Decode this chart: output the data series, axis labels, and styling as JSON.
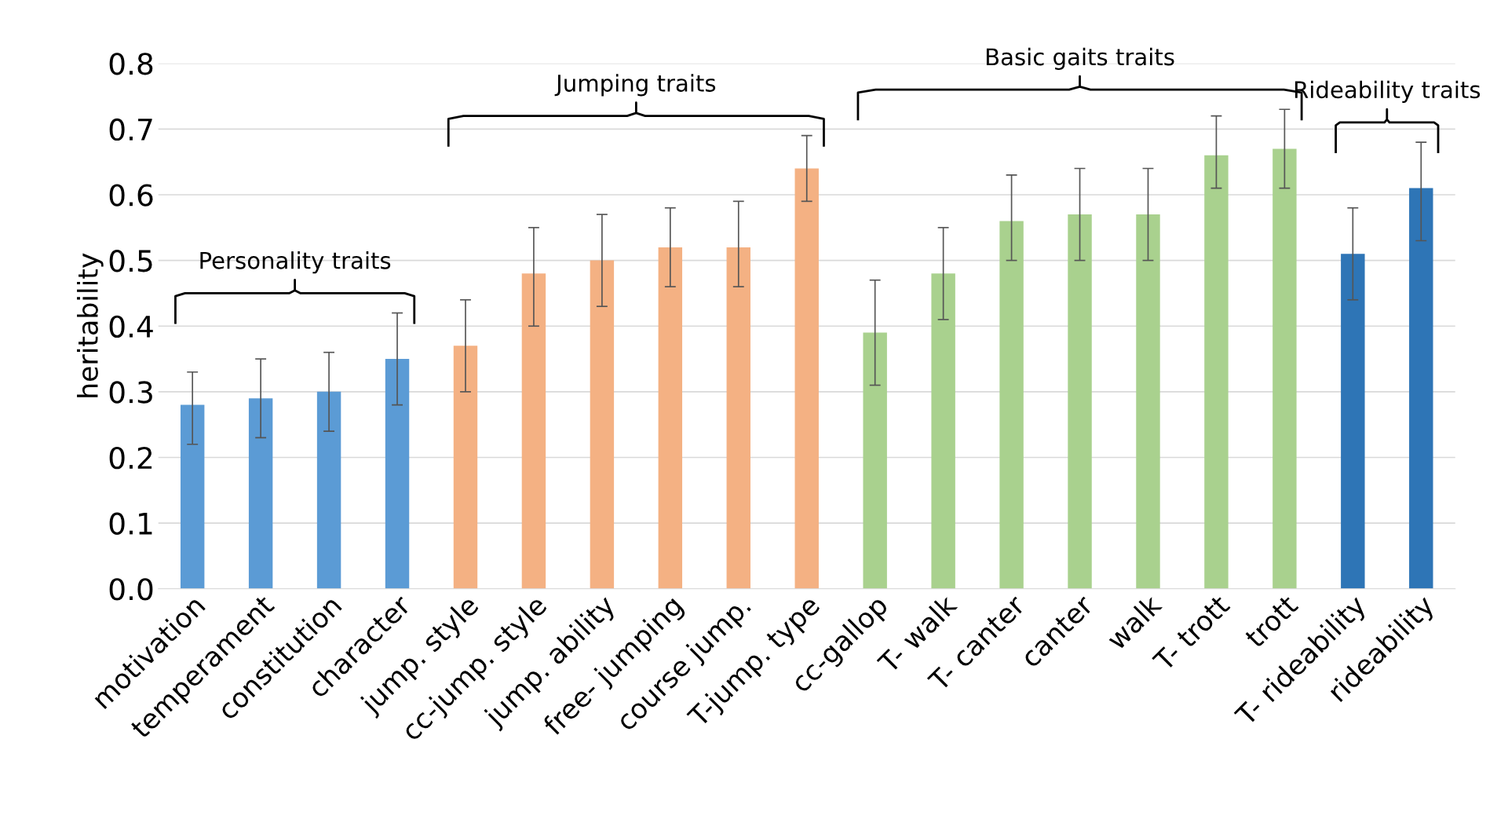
{
  "chart_data": {
    "type": "bar",
    "ylabel": "heritability",
    "categories": [
      "motivation",
      "temperament",
      "constitution",
      "character",
      "jump. style",
      "cc-jump. style",
      "jump. ability",
      "free- jumping",
      "course jump.",
      "T-jump. type",
      "cc-gallop",
      "T- walk",
      "T- canter",
      "canter",
      "walk",
      "T- trott",
      "trott",
      "T- rideability",
      "rideability"
    ],
    "values": [
      0.28,
      0.29,
      0.3,
      0.35,
      0.37,
      0.48,
      0.5,
      0.52,
      0.52,
      0.64,
      0.39,
      0.48,
      0.56,
      0.57,
      0.57,
      0.66,
      0.67,
      0.51,
      0.61
    ],
    "errors": [
      [
        0.22,
        0.33
      ],
      [
        0.23,
        0.35
      ],
      [
        0.24,
        0.36
      ],
      [
        0.28,
        0.42
      ],
      [
        0.3,
        0.44
      ],
      [
        0.4,
        0.55
      ],
      [
        0.43,
        0.57
      ],
      [
        0.46,
        0.58
      ],
      [
        0.46,
        0.59
      ],
      [
        0.59,
        0.69
      ],
      [
        0.31,
        0.47
      ],
      [
        0.41,
        0.55
      ],
      [
        0.5,
        0.63
      ],
      [
        0.5,
        0.64
      ],
      [
        0.5,
        0.64
      ],
      [
        0.61,
        0.72
      ],
      [
        0.61,
        0.73
      ],
      [
        0.44,
        0.58
      ],
      [
        0.53,
        0.68
      ]
    ],
    "colors": [
      "#5b9bd5",
      "#5b9bd5",
      "#5b9bd5",
      "#5b9bd5",
      "#f4b183",
      "#f4b183",
      "#f4b183",
      "#f4b183",
      "#f4b183",
      "#f4b183",
      "#a9d18e",
      "#a9d18e",
      "#a9d18e",
      "#a9d18e",
      "#a9d18e",
      "#a9d18e",
      "#a9d18e",
      "#2e75b6",
      "#2e75b6"
    ],
    "ylim": [
      0,
      0.8
    ],
    "yticks": [
      {
        "value": 0,
        "label": "0.0"
      },
      0.1,
      0.2,
      0.3,
      0.4,
      0.5,
      0.6,
      0.7,
      0.8
    ],
    "grid": "y",
    "annotations": [
      "Personality traits",
      "Jumping traits",
      "Basic gaits traits",
      "Rideability traits"
    ]
  }
}
